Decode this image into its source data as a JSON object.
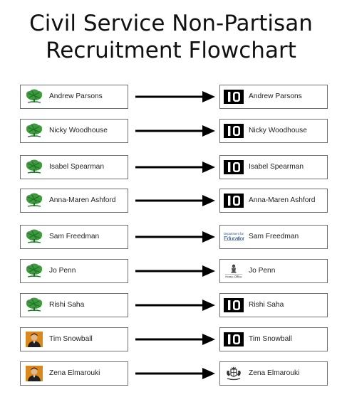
{
  "title_line1": "Civil Service Non-Partisan",
  "title_line2": "Recruitment Flowchart",
  "rows": [
    {
      "from_icon": "conservative-tree-icon",
      "from_name": "Andrew Parsons",
      "to_icon": "number-10-icon",
      "to_name": "Andrew Parsons"
    },
    {
      "from_icon": "conservative-tree-icon",
      "from_name": "Nicky Woodhouse",
      "to_icon": "number-10-icon",
      "to_name": "Nicky Woodhouse"
    },
    {
      "from_icon": "conservative-tree-icon",
      "from_name": "Isabel Spearman",
      "to_icon": "number-10-icon",
      "to_name": "Isabel Spearman"
    },
    {
      "from_icon": "conservative-tree-icon",
      "from_name": "Anna-Maren Ashford",
      "to_icon": "number-10-icon",
      "to_name": "Anna-Maren Ashford"
    },
    {
      "from_icon": "conservative-tree-icon",
      "from_name": "Sam Freedman",
      "to_icon": "department-for-education-icon",
      "to_name": "Sam Freedman"
    },
    {
      "from_icon": "conservative-tree-icon",
      "from_name": "Jo Penn",
      "to_icon": "home-office-icon",
      "to_name": "Jo Penn"
    },
    {
      "from_icon": "conservative-tree-icon",
      "from_name": "Rishi Saha",
      "to_icon": "number-10-icon",
      "to_name": "Rishi Saha"
    },
    {
      "from_icon": "person-photo-icon",
      "from_name": "Tim Snowball",
      "to_icon": "number-10-icon",
      "to_name": "Tim Snowball"
    },
    {
      "from_icon": "person-photo-icon",
      "from_name": "Zena Elmarouki",
      "to_icon": "royal-crest-icon",
      "to_name": "Zena Elmarouki"
    }
  ],
  "logo_text": {
    "number10": "10",
    "dfe_top": "Department for",
    "dfe_main": "Education",
    "home_office": "Home Office"
  },
  "colors": {
    "tree_green": "#3e9b3c",
    "tree_dark": "#1f6f2a",
    "photo_bg": "#d98a1e",
    "box_border": "#6f6f6f",
    "arrow": "#000000",
    "dfe_blue": "#1d4f91"
  }
}
